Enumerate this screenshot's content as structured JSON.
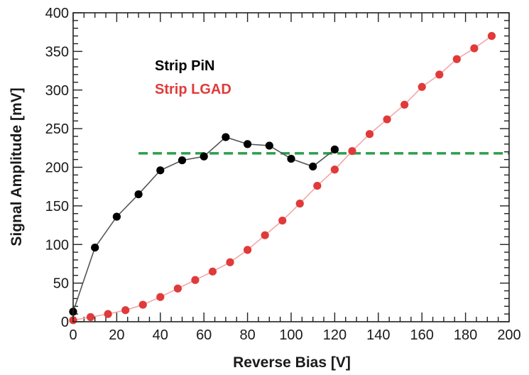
{
  "chart_data": {
    "type": "line",
    "xlabel": "Reverse Bias [V]",
    "ylabel": "Signal Amplitude [mV]",
    "xlim": [
      0,
      200
    ],
    "ylim": [
      0,
      400
    ],
    "xticks": [
      0,
      20,
      40,
      60,
      80,
      100,
      120,
      140,
      160,
      180,
      200
    ],
    "yticks": [
      0,
      50,
      100,
      150,
      200,
      250,
      300,
      350,
      400
    ],
    "grid": false,
    "legend_position": "top-left",
    "series": [
      {
        "name": "Strip PiN",
        "color": "#000000",
        "line_color": "#555555",
        "marker": "circle",
        "x": [
          0,
          10,
          20,
          30,
          40,
          50,
          60,
          70,
          80,
          90,
          100,
          110,
          120
        ],
        "y": [
          13,
          96,
          136,
          165,
          196,
          209,
          214,
          239,
          230,
          228,
          211,
          201,
          223
        ]
      },
      {
        "name": "Strip LGAD",
        "color": "#e03a3a",
        "line_color": "#f4a6a6",
        "marker": "circle",
        "x": [
          0,
          8,
          16,
          24,
          32,
          40,
          48,
          56,
          64,
          72,
          80,
          88,
          96,
          104,
          112,
          120,
          128,
          136,
          144,
          152,
          160,
          168,
          176,
          184,
          192
        ],
        "y": [
          2,
          6,
          10,
          15,
          22,
          32,
          43,
          54,
          65,
          77,
          93,
          112,
          131,
          153,
          176,
          197,
          221,
          243,
          262,
          281,
          304,
          320,
          340,
          354,
          370
        ]
      }
    ],
    "reference_line": {
      "y": 218,
      "x_range": [
        30,
        200
      ],
      "color": "#2aa04a",
      "style": "dashed"
    }
  }
}
